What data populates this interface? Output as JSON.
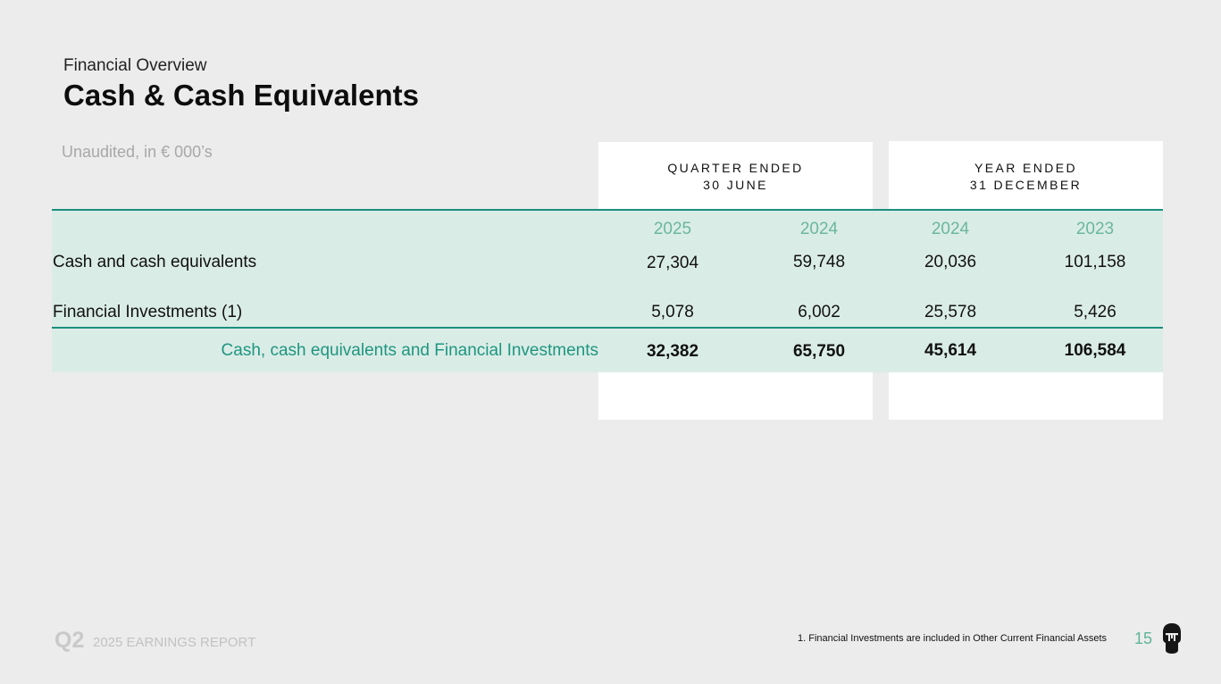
{
  "header": {
    "subtitle": "Financial Overview",
    "title": "Cash & Cash Equivalents",
    "unit_note": "Unaudited, in € 000’s"
  },
  "periods": {
    "quarter_line1": "QUARTER ENDED",
    "quarter_line2": "30 JUNE",
    "year_line1": "YEAR ENDED",
    "year_line2": "31 DECEMBER"
  },
  "table": {
    "years": [
      "2025",
      "2024",
      "2024",
      "2023"
    ],
    "rows": [
      {
        "label": "Cash and cash equivalents",
        "values": [
          "27,304",
          "59,748",
          "20,036",
          "101,158"
        ]
      },
      {
        "label": "Financial Investments (1)",
        "values": [
          "5,078",
          "6,002",
          "25,578",
          "5,426"
        ]
      }
    ],
    "total": {
      "label": "Cash, cash equivalents and Financial Investments",
      "values": [
        "32,382",
        "65,750",
        "45,614",
        "106,584"
      ]
    }
  },
  "footer": {
    "quarter": "Q2",
    "report": "2025 EARNINGS REPORT",
    "footnote": "1. Financial Investments are included in Other Current Financial Assets",
    "page_number": "15"
  },
  "colors": {
    "accent": "#1b8f7d",
    "year_text": "#6ab79e",
    "band": "#daece6",
    "background": "#ececec"
  },
  "icons": {
    "logo": "skull-logo-icon"
  }
}
